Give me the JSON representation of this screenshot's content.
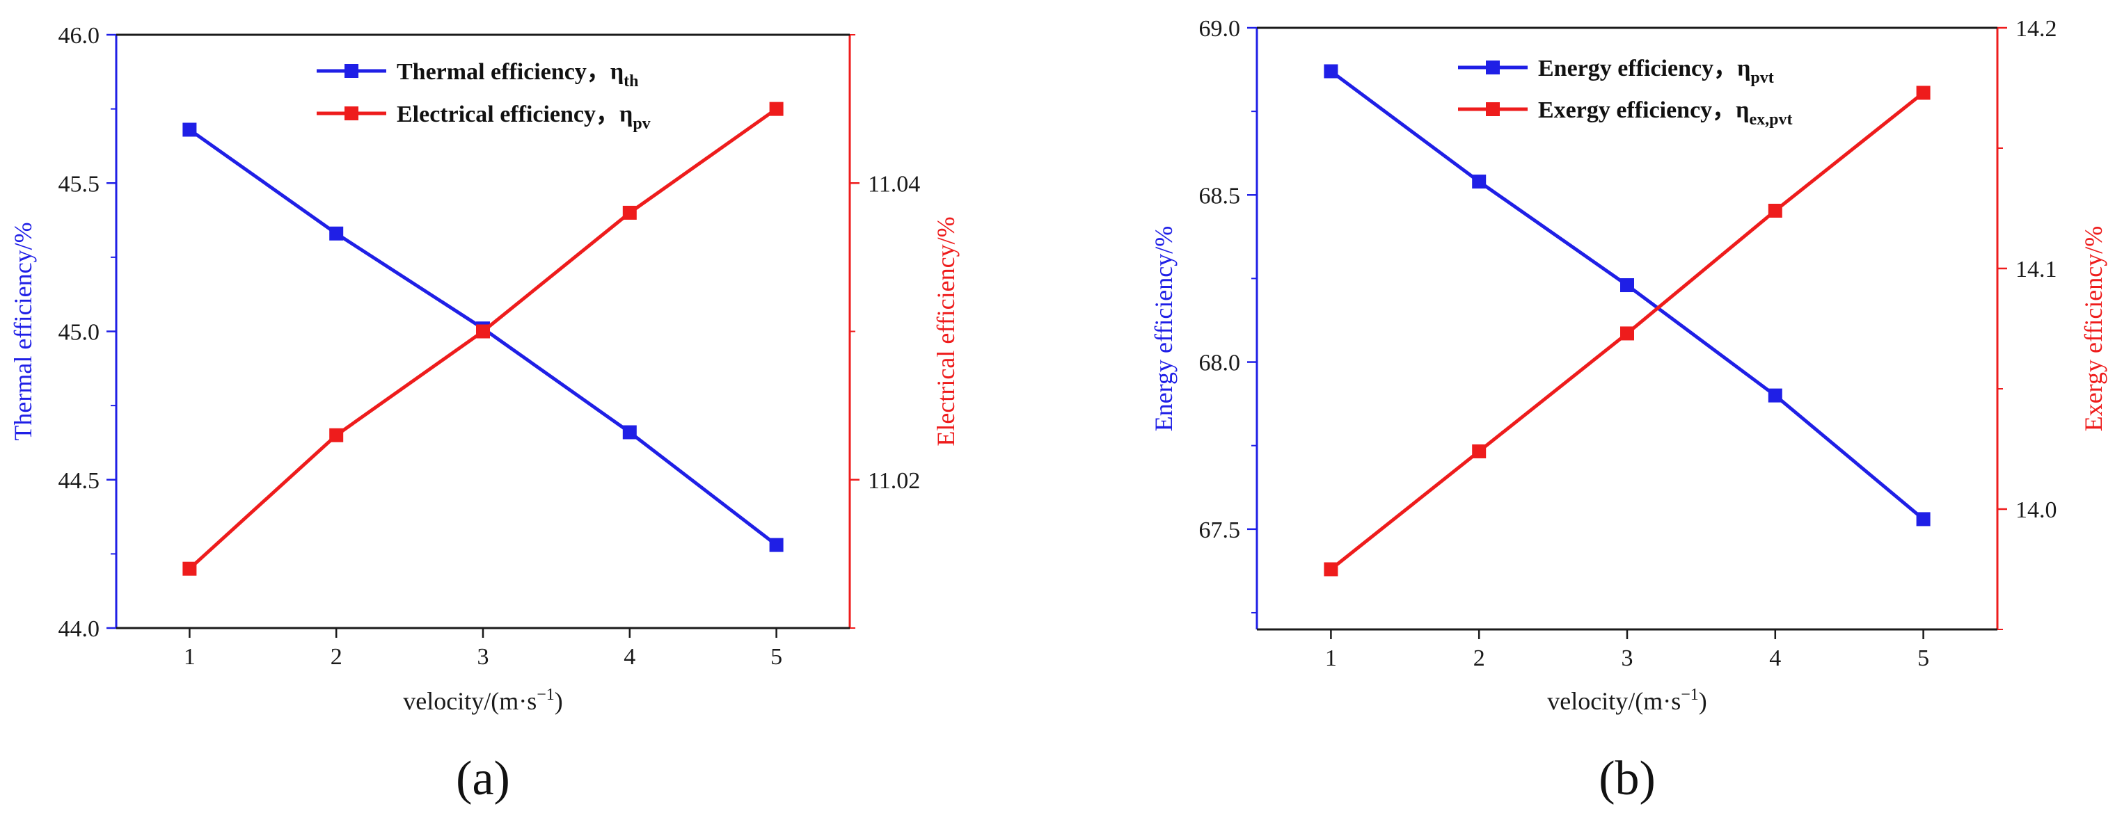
{
  "colors": {
    "blue": "#1f1fe6",
    "red": "#ee1c1c",
    "axis": "#1a1a1a"
  },
  "chart_data": [
    {
      "type": "line",
      "panel_label": "(a)",
      "x": [
        1,
        2,
        3,
        4,
        5
      ],
      "xlabel_main": "velocity/(m·s",
      "xlabel_sup": "−1",
      "xlabel_tail": ")",
      "xlim": [
        0.5,
        5.5
      ],
      "xticks": [
        "1",
        "2",
        "3",
        "4",
        "5"
      ],
      "left_axis": {
        "label": "Thermal efficiency/%",
        "ylim": [
          44.0,
          46.0
        ],
        "ticks": [
          "44.0",
          "44.5",
          "45.0",
          "45.5",
          "46.0"
        ],
        "color": "#1f1fe6"
      },
      "right_axis": {
        "label": "Electrical efficiency/%",
        "ylim": [
          11.01,
          11.05
        ],
        "ticks": [
          "11.02",
          "11.04"
        ],
        "color": "#ee1c1c"
      },
      "series": [
        {
          "name": "Thermal efficiency，η",
          "sub": "th",
          "axis": "left",
          "color": "#1f1fe6",
          "values": [
            45.68,
            45.33,
            45.01,
            44.66,
            44.28
          ]
        },
        {
          "name": "Electrical efficiency，η",
          "sub": "pv",
          "axis": "right",
          "color": "#ee1c1c",
          "values": [
            11.014,
            11.023,
            11.03,
            11.038,
            11.045
          ]
        }
      ],
      "legend_position": "top-center"
    },
    {
      "type": "line",
      "panel_label": "(b)",
      "x": [
        1,
        2,
        3,
        4,
        5
      ],
      "xlabel_main": "velocity/(m·s",
      "xlabel_sup": "−1",
      "xlabel_tail": ")",
      "xlim": [
        0.5,
        5.5
      ],
      "xticks": [
        "1",
        "2",
        "3",
        "4",
        "5"
      ],
      "left_axis": {
        "label": "Energy efficiency/%",
        "ylim": [
          67.2,
          69.0
        ],
        "ticks": [
          "67.5",
          "68.0",
          "68.5",
          "69.0"
        ],
        "color": "#1f1fe6"
      },
      "right_axis": {
        "label": "Exergy efficiency/%",
        "ylim": [
          13.95,
          14.2
        ],
        "ticks": [
          "14.0",
          "14.1",
          "14.2"
        ],
        "color": "#ee1c1c"
      },
      "series": [
        {
          "name": "Energy efficiency，η",
          "sub": "pvt",
          "axis": "left",
          "color": "#1f1fe6",
          "values": [
            68.87,
            68.54,
            68.23,
            67.9,
            67.53
          ]
        },
        {
          "name": "Exergy efficiency，η",
          "sub": "ex,pvt",
          "axis": "right",
          "color": "#ee1c1c",
          "values": [
            13.975,
            14.024,
            14.073,
            14.124,
            14.173
          ]
        }
      ],
      "legend_position": "top-center"
    }
  ]
}
